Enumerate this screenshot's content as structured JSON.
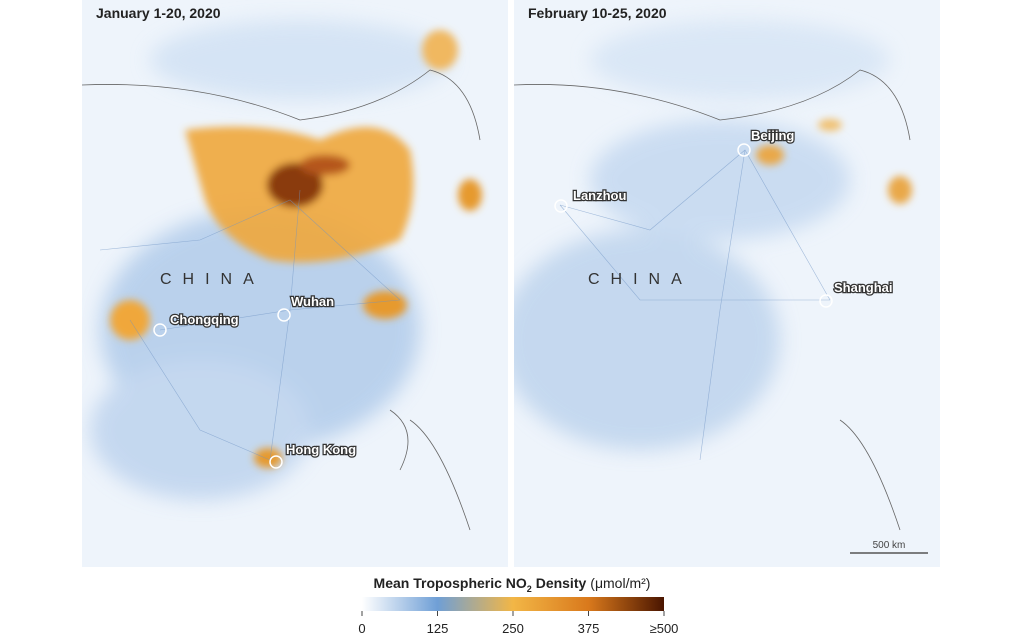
{
  "panels": [
    {
      "title": "January 1-20, 2020",
      "country": "CHINA",
      "cities": [
        "Chongqing",
        "Wuhan",
        "Hong Kong"
      ]
    },
    {
      "title": "February 10-25, 2020",
      "country": "CHINA",
      "cities": [
        "Lanzhou",
        "Beijing",
        "Shanghai"
      ],
      "scale_bar": "500 km"
    }
  ],
  "legend": {
    "title": "Mean Tropospheric NO",
    "subscript": "2",
    "title_rest": " Density",
    "unit": "(μmol/m²)",
    "range": [
      0,
      500
    ],
    "ticks": [
      0,
      125,
      250,
      375,
      {
        "value": 500,
        "label": "≥500"
      }
    ]
  }
}
